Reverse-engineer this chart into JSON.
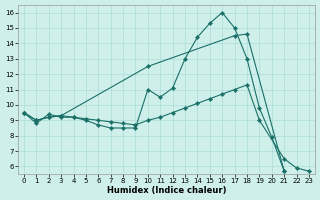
{
  "background_color": "#cff0ea",
  "grid_color": "#aaddd6",
  "line_color": "#1a7068",
  "xlabel": "Humidex (Indice chaleur)",
  "xlim": [
    -0.5,
    23.5
  ],
  "ylim": [
    5.5,
    16.5
  ],
  "xticks": [
    0,
    1,
    2,
    3,
    4,
    5,
    6,
    7,
    8,
    9,
    10,
    11,
    12,
    13,
    14,
    15,
    16,
    17,
    18,
    19,
    20,
    21,
    22,
    23
  ],
  "yticks": [
    6,
    7,
    8,
    9,
    10,
    11,
    12,
    13,
    14,
    15,
    16
  ],
  "curve1_x": [
    0,
    1,
    2,
    3,
    4,
    5,
    6,
    7,
    8,
    9,
    10,
    11,
    12,
    13,
    14,
    15,
    16,
    17,
    18,
    19,
    20,
    21
  ],
  "curve1_y": [
    9.5,
    8.8,
    9.4,
    9.2,
    9.2,
    9.0,
    8.7,
    8.5,
    8.5,
    8.5,
    11.0,
    10.5,
    11.1,
    13.0,
    14.4,
    15.3,
    16.0,
    15.0,
    13.0,
    9.8,
    7.9,
    5.7
  ],
  "curve2_x": [
    0,
    1,
    2,
    3,
    10,
    17,
    18,
    21
  ],
  "curve2_y": [
    9.5,
    9.0,
    9.2,
    9.3,
    12.5,
    14.5,
    14.6,
    5.7
  ],
  "curve3_x": [
    0,
    1,
    2,
    3,
    4,
    5,
    6,
    7,
    8,
    9,
    10,
    11,
    12,
    13,
    14,
    15,
    16,
    17,
    18,
    19,
    21,
    22,
    23
  ],
  "curve3_y": [
    9.5,
    9.0,
    9.2,
    9.3,
    9.2,
    9.1,
    9.0,
    8.9,
    8.8,
    8.7,
    9.0,
    9.2,
    9.5,
    9.8,
    10.1,
    10.4,
    10.7,
    11.0,
    11.3,
    9.0,
    6.5,
    5.9,
    5.7
  ]
}
